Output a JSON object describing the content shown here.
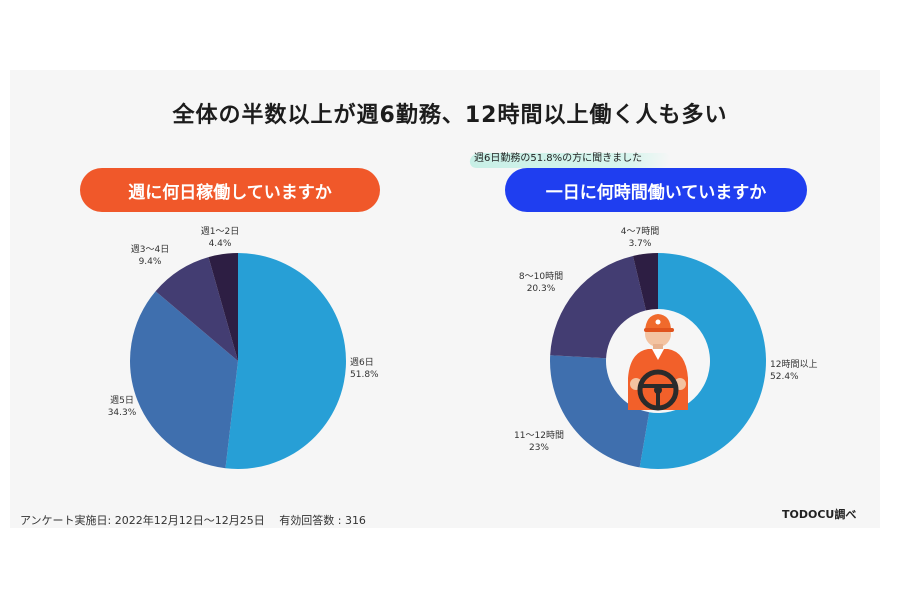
{
  "title": "全体の半数以上が週6勤務、12時間以上働く人も多い",
  "left_question": "週に何日稼働していますか",
  "right_question": "一日に何時間働いていますか",
  "right_note": "週6日勤務の51.8%の方に聞きました",
  "footer_left": "アンケート実施日: 2022年12月12日〜12月25日　 有効回答数 : 316",
  "footer_right": "TODOCU調べ",
  "chart_data": [
    {
      "type": "pie",
      "title": "週に何日稼働していますか",
      "categories": [
        "週6日",
        "週5日",
        "週3〜4日",
        "週1〜2日"
      ],
      "values": [
        51.8,
        34.3,
        9.4,
        4.4
      ],
      "labels": [
        "51.8%",
        "34.3%",
        "9.4%",
        "4.4%"
      ],
      "colors": [
        "#279fd6",
        "#3f6fae",
        "#433d72",
        "#2d1e43"
      ]
    },
    {
      "type": "pie",
      "title": "一日に何時間働いていますか",
      "categories": [
        "12時間以上",
        "11〜12時間",
        "8〜10時間",
        "4〜7時間"
      ],
      "values": [
        52.4,
        23,
        20.3,
        3.7
      ],
      "labels": [
        "52.4%",
        "23%",
        "20.3%",
        "3.7%"
      ],
      "colors": [
        "#279fd6",
        "#3f6fae",
        "#433d72",
        "#2d1e43"
      ]
    }
  ]
}
